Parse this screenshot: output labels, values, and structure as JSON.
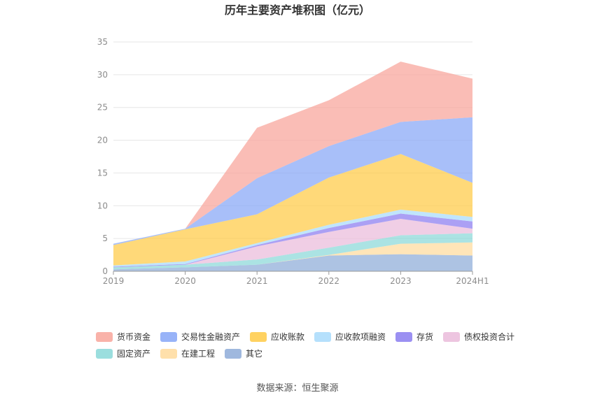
{
  "chart_data": {
    "type": "area",
    "stacked": true,
    "title": "历年主要资产堆积图（亿元）",
    "categories": [
      "2019",
      "2020",
      "2021",
      "2022",
      "2023",
      "2024H1"
    ],
    "ylim": [
      0,
      35
    ],
    "yticks": [
      0,
      5,
      10,
      15,
      20,
      25,
      30,
      35
    ],
    "grid": true,
    "legend_position": "bottom",
    "series": [
      {
        "name": "其它",
        "color": "#8eacd8",
        "values": [
          0.3,
          0.6,
          1.0,
          2.4,
          2.6,
          2.4
        ]
      },
      {
        "name": "在建工程",
        "color": "#ffdb9c",
        "values": [
          0.0,
          0.0,
          0.0,
          0.1,
          1.6,
          2.0
        ]
      },
      {
        "name": "固定资产",
        "color": "#8ad8d8",
        "values": [
          0.3,
          0.4,
          0.8,
          1.1,
          1.3,
          1.4
        ]
      },
      {
        "name": "债权投资合计",
        "color": "#eabbdb",
        "values": [
          0.0,
          0.0,
          2.0,
          2.4,
          2.5,
          0.7
        ]
      },
      {
        "name": "存货",
        "color": "#8a7cf0",
        "values": [
          0.1,
          0.1,
          0.2,
          0.6,
          0.8,
          1.1
        ]
      },
      {
        "name": "应收款项融资",
        "color": "#a8dbfb",
        "values": [
          0.2,
          0.4,
          0.3,
          0.5,
          0.6,
          0.7
        ]
      },
      {
        "name": "应收账款",
        "color": "#ffca45",
        "values": [
          3.1,
          4.9,
          4.4,
          7.2,
          8.5,
          5.2
        ]
      },
      {
        "name": "交易性金融资产",
        "color": "#86a6f7",
        "values": [
          0.2,
          0.1,
          5.5,
          4.8,
          4.9,
          10.0
        ]
      },
      {
        "name": "货币资金",
        "color": "#f8a49a",
        "values": [
          0.0,
          0.0,
          7.7,
          7.0,
          9.2,
          5.9
        ]
      }
    ],
    "legend_order": [
      "货币资金",
      "交易性金融资产",
      "应收账款",
      "应收款项融资",
      "存货",
      "债权投资合计",
      "固定资产",
      "在建工程",
      "其它"
    ]
  },
  "footer": {
    "source": "数据来源：恒生聚源"
  }
}
